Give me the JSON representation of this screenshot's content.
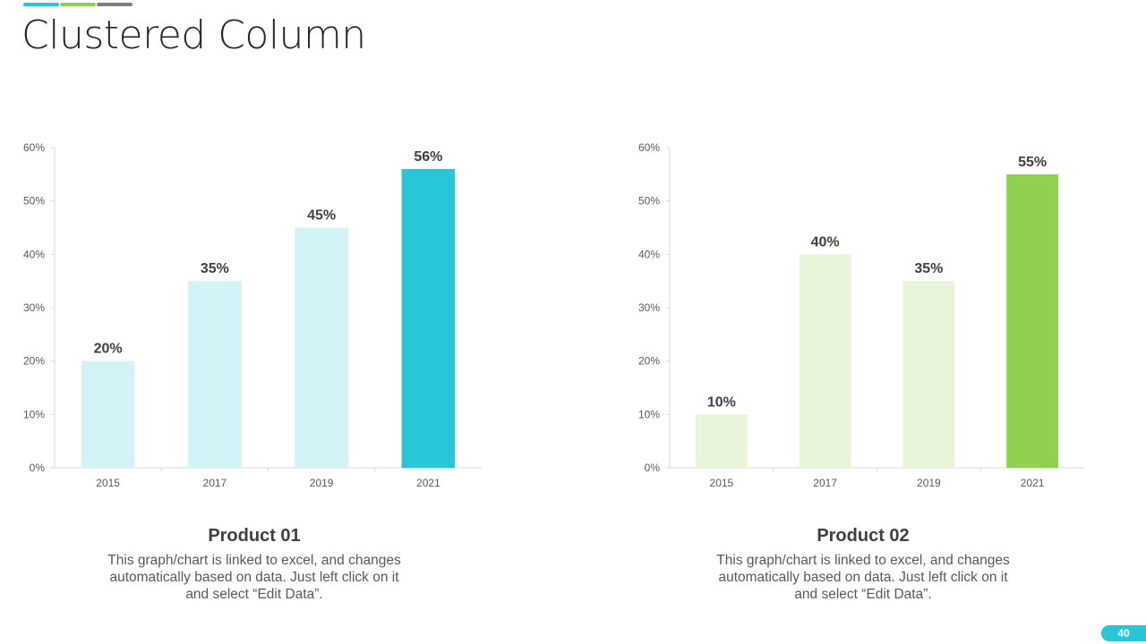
{
  "slide": {
    "title": "Clustered Column",
    "page_number": "40",
    "colors": {
      "accent_cyan": "#29C5D8",
      "accent_green": "#8FD14F",
      "accent_gray": "#7F7F7F",
      "cyan_light": "#D3F3F6",
      "green_light": "#E8F5DA"
    }
  },
  "panels": [
    {
      "caption_title": "Product 01",
      "caption_text": "This graph/chart is linked to excel, and changes automatically based on data. Just left click on it and select “Edit Data”."
    },
    {
      "caption_title": "Product 02",
      "caption_text": "This graph/chart is linked to excel, and changes automatically based on data. Just left click on it and select “Edit Data”."
    }
  ],
  "chart_data": [
    {
      "type": "bar",
      "categories": [
        "2015",
        "2017",
        "2019",
        "2021"
      ],
      "values": [
        20,
        35,
        45,
        56
      ],
      "data_labels": [
        "20%",
        "35%",
        "45%",
        "56%"
      ],
      "y_ticks": [
        "0%",
        "10%",
        "20%",
        "30%",
        "40%",
        "50%",
        "60%"
      ],
      "ylim": [
        0,
        60
      ],
      "bar_colors": [
        "#D3F3F6",
        "#D3F3F6",
        "#D3F3F6",
        "#29C5D8"
      ],
      "grid": false,
      "legend": "none"
    },
    {
      "type": "bar",
      "categories": [
        "2015",
        "2017",
        "2019",
        "2021"
      ],
      "values": [
        10,
        40,
        35,
        55
      ],
      "data_labels": [
        "10%",
        "40%",
        "35%",
        "55%"
      ],
      "y_ticks": [
        "0%",
        "10%",
        "20%",
        "30%",
        "40%",
        "50%",
        "60%"
      ],
      "ylim": [
        0,
        60
      ],
      "bar_colors": [
        "#E8F5DA",
        "#E8F5DA",
        "#E8F5DA",
        "#8FD14F"
      ],
      "grid": false,
      "legend": "none"
    }
  ]
}
